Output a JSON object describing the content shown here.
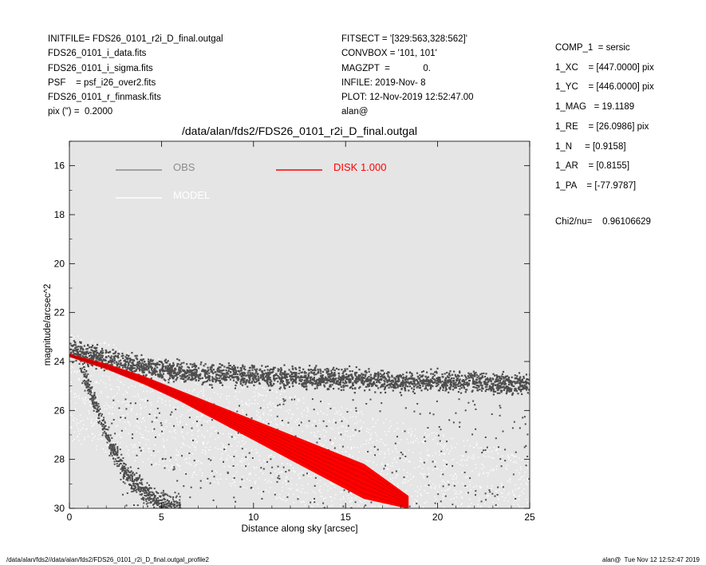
{
  "header_left": [
    "INITFILE= FDS26_0101_r2i_D_final.outgal",
    "FDS26_0101_i_data.fits",
    "FDS26_0101_i_sigma.fits",
    "PSF    = psf_i26_over2.fits",
    "FDS26_0101_r_finmask.fits",
    "pix (\") =  0.2000"
  ],
  "header_mid": [
    "FITSECT = '[329:563,328:562]'",
    "CONVBOX = '101, 101'",
    "MAGZPT  =             0.",
    "INFILE: 2019-Nov- 8",
    "PLOT: 12-Nov-2019 12:52:47.00",
    "alan@"
  ],
  "header_right": [
    "COMP_1  = sersic",
    "1_XC    = [447.0000] pix",
    "1_YC    = [446.0000] pix",
    "1_MAG   = 19.1189",
    "1_RE    = [26.0986] pix",
    "1_N     = [0.9158]",
    "1_AR    = [0.8155]",
    "1_PA    = [-77.9787]"
  ],
  "chi_label": "Chi2/nu=",
  "chi_value": "0.96106629",
  "footer_left": "/data/alan/fds2//data/alan/fds2/FDS26_0101_r2i_D_final.outgal_profile2",
  "footer_right": "alan@  Tue Nov 12 12:52:47 2019",
  "chart_data": {
    "type": "scatter",
    "title": "/data/alan/fds2/FDS26_0101_r2i_D_final.outgal",
    "xlabel": "Distance along sky [arcsec]",
    "ylabel": "magnitude/arcsec^2",
    "xlim": [
      0,
      25
    ],
    "ylim": [
      30,
      15
    ],
    "y_inverted": true,
    "x_ticks": [
      0,
      5,
      10,
      15,
      20,
      25
    ],
    "y_ticks": [
      16,
      18,
      20,
      22,
      24,
      26,
      28,
      30
    ],
    "grid": false,
    "background": "#e5e5e5",
    "legend": [
      {
        "label": "OBS",
        "color": "#8c8c8c"
      },
      {
        "label": "DISK  1.000",
        "color": "#ff0000"
      },
      {
        "label": "MODEL",
        "color": "#ffffff"
      }
    ],
    "series": [
      {
        "name": "OBS",
        "kind": "points",
        "color": "#4d4d4d",
        "note": "upper sky-limited band",
        "x": [
          0.2,
          0.5,
          1.0,
          1.5,
          2.5,
          4.0,
          6.0,
          8.0,
          10.0,
          12.0,
          14.0,
          16.0,
          18.0,
          20.0,
          22.0,
          24.0,
          25.0
        ],
        "y": [
          23.5,
          23.6,
          23.7,
          23.8,
          23.9,
          24.2,
          24.4,
          24.5,
          24.6,
          24.6,
          24.7,
          24.7,
          24.8,
          24.8,
          24.8,
          24.9,
          24.9
        ]
      },
      {
        "name": "OBS",
        "kind": "points",
        "color": "#4d4d4d",
        "note": "lower branch",
        "x": [
          0.5,
          1.0,
          1.5,
          2.0,
          2.5,
          3.0,
          4.0,
          5.0,
          6.0
        ],
        "y": [
          24.0,
          25.0,
          26.0,
          27.0,
          27.8,
          28.5,
          29.3,
          29.8,
          30.0
        ]
      },
      {
        "name": "MODEL",
        "kind": "points",
        "color": "#ffffff",
        "x": [
          0.5,
          5,
          10,
          15,
          20,
          25
        ],
        "y": [
          24.0,
          25.0,
          26.0,
          27.0,
          28.0,
          29.0
        ]
      },
      {
        "name": "DISK  1.000",
        "kind": "band",
        "color": "#ff0000",
        "x": [
          0.0,
          2.0,
          4.0,
          6.0,
          8.0,
          10.0,
          12.0,
          14.0,
          16.0,
          18.4
        ],
        "y_upper": [
          23.7,
          24.1,
          24.6,
          25.2,
          25.8,
          26.4,
          27.0,
          27.6,
          28.2,
          29.5
        ],
        "y_lower": [
          23.8,
          24.3,
          24.9,
          25.6,
          26.4,
          27.2,
          28.0,
          28.8,
          29.6,
          30.0
        ]
      }
    ]
  }
}
